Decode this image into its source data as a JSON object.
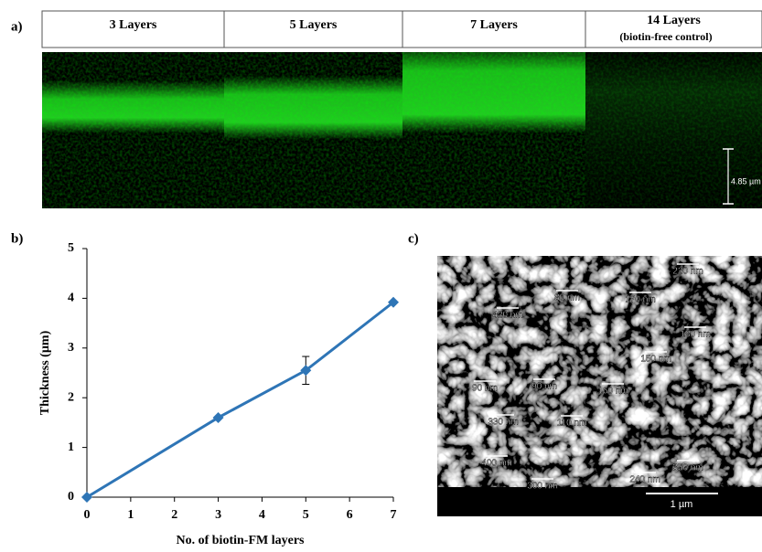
{
  "panel_a": {
    "label": "a)",
    "headers": [
      "3 Layers",
      "5 Layers",
      "7 Layers",
      "14 Layers"
    ],
    "control_note": "(biotin-free control)",
    "scale_label": "4.85 µm"
  },
  "panel_b": {
    "label": "b)"
  },
  "chart_data": {
    "type": "line",
    "x_label": "No. of biotin-FM layers",
    "y_label": "Thickness (µm)",
    "x": [
      0,
      3,
      5,
      7
    ],
    "series": [
      {
        "color": "#2e75b6",
        "values": [
          0,
          1.6,
          2.55,
          3.92
        ],
        "errors": [
          null,
          null,
          0.28,
          null
        ]
      }
    ],
    "xlim": [
      0,
      7
    ],
    "ylim": [
      0,
      5
    ],
    "xticks": [
      0,
      1,
      2,
      3,
      4,
      5,
      6,
      7
    ],
    "yticks": [
      0,
      1,
      2,
      3,
      4,
      5
    ]
  },
  "panel_c": {
    "label": "c)",
    "measurements": [
      "220 nm",
      "420 nm",
      "80 nm",
      "170 nm",
      "180 nm",
      "150 nm",
      "90 nm",
      "90 nm",
      "160 nm",
      "330 nm",
      "110 nm",
      "400 nm",
      "300 nm",
      "240 nm",
      "350 nm"
    ],
    "scale_label": "1 µm"
  }
}
